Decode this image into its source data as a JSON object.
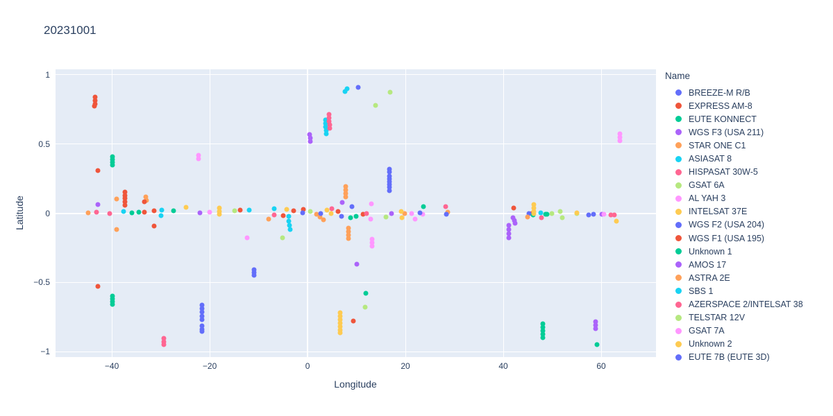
{
  "title": "20231001",
  "colors": {
    "text": "#2a3f5f",
    "plot_background": "#e5ecf6",
    "grid": "#ffffff",
    "paper_background": "#ffffff"
  },
  "chart_data": {
    "type": "scatter",
    "title": "20231001",
    "xlabel": "Longitude",
    "ylabel": "Latitude",
    "xlim": [
      -51.5,
      71.2
    ],
    "ylim": [
      -1.04,
      1.04
    ],
    "grid": true,
    "legend_position": "right",
    "legend_title": "Name",
    "x_ticks": [
      {
        "v": -40,
        "label": "−40"
      },
      {
        "v": -20,
        "label": "−20"
      },
      {
        "v": 0,
        "label": "0"
      },
      {
        "v": 20,
        "label": "20"
      },
      {
        "v": 40,
        "label": "40"
      },
      {
        "v": 60,
        "label": "60"
      }
    ],
    "y_ticks": [
      {
        "v": 1,
        "label": "1"
      },
      {
        "v": 0.5,
        "label": "0.5"
      },
      {
        "v": 0,
        "label": "0"
      },
      {
        "v": -0.5,
        "label": "−0.5"
      },
      {
        "v": -1,
        "label": "−1"
      }
    ],
    "series": [
      {
        "name": "BREEZE-M R/B",
        "color": "#636EFA",
        "points": [
          [
            16.7,
            0.32
          ],
          [
            16.7,
            0.3
          ],
          [
            16.7,
            0.27
          ],
          [
            16.7,
            0.25
          ],
          [
            16.8,
            0.23
          ],
          [
            16.8,
            0.21
          ],
          [
            16.8,
            0.19
          ],
          [
            16.8,
            0.165
          ],
          [
            10.4,
            0.91
          ],
          [
            -21.6,
            -0.665
          ],
          [
            -21.6,
            -0.69
          ],
          [
            -21.6,
            -0.715
          ],
          [
            -21.6,
            -0.745
          ],
          [
            -21.6,
            -0.77
          ],
          [
            -21.6,
            -0.815
          ],
          [
            -21.6,
            -0.84
          ],
          [
            -21.6,
            -0.855
          ],
          [
            -10.9,
            -0.41
          ],
          [
            -10.9,
            -0.43
          ],
          [
            -10.9,
            -0.45
          ]
        ]
      },
      {
        "name": "EXPRESS AM-8",
        "color": "#EF553B",
        "points": [
          [
            -13.8,
            0.025
          ],
          [
            -5.0,
            -0.02
          ],
          [
            -2.9,
            0.02
          ],
          [
            -0.9,
            0.03
          ],
          [
            6.2,
            0.015
          ],
          [
            11.3,
            -0.01
          ],
          [
            9.4,
            -0.78
          ],
          [
            42.1,
            0.04
          ],
          [
            45.8,
            -0.005
          ]
        ]
      },
      {
        "name": "EUTE KONNECT",
        "color": "#00CC96",
        "points": [
          [
            -39.9,
            0.41
          ],
          [
            -39.9,
            0.39
          ],
          [
            -39.9,
            0.37
          ],
          [
            -39.9,
            0.35
          ],
          [
            -39.9,
            -0.6
          ],
          [
            -39.9,
            -0.62
          ],
          [
            -39.9,
            -0.64
          ],
          [
            -39.9,
            -0.66
          ],
          [
            -35.9,
            0.005
          ],
          [
            -34.5,
            0.01
          ],
          [
            -27.4,
            0.02
          ]
        ]
      },
      {
        "name": "WGS F3 (USA 211)",
        "color": "#AB63FA",
        "points": [
          [
            -42.8,
            0.065
          ],
          [
            -22.0,
            0.005
          ],
          [
            0.4,
            0.57
          ],
          [
            0.5,
            0.545
          ],
          [
            0.6,
            0.52
          ],
          [
            10.1,
            -0.37
          ],
          [
            41.1,
            -0.09
          ],
          [
            41.1,
            -0.12
          ],
          [
            41.1,
            -0.15
          ],
          [
            41.1,
            -0.18
          ],
          [
            42.0,
            -0.035
          ],
          [
            42.2,
            -0.055
          ],
          [
            42.4,
            -0.075
          ],
          [
            58.8,
            -0.785
          ],
          [
            58.8,
            -0.81
          ],
          [
            58.8,
            -0.835
          ],
          [
            60.2,
            -0.01
          ]
        ]
      },
      {
        "name": "STAR ONE C1",
        "color": "#FFA15A",
        "points": [
          [
            -44.8,
            0.005
          ],
          [
            -39.0,
            0.105
          ],
          [
            -39.0,
            -0.12
          ],
          [
            -33.0,
            0.12
          ],
          [
            -32.9,
            0.095
          ],
          [
            -8.0,
            -0.045
          ],
          [
            1.9,
            -0.01
          ],
          [
            2.5,
            -0.03
          ],
          [
            3.2,
            -0.05
          ],
          [
            7.8,
            0.195
          ],
          [
            7.8,
            0.17
          ],
          [
            7.8,
            0.145
          ],
          [
            7.8,
            0.12
          ],
          [
            8.3,
            -0.11
          ],
          [
            8.3,
            -0.135
          ],
          [
            8.3,
            -0.16
          ],
          [
            8.3,
            -0.185
          ]
        ]
      },
      {
        "name": "ASIASAT 8",
        "color": "#19D3F3",
        "points": [
          [
            3.7,
            0.675
          ],
          [
            3.7,
            0.65
          ],
          [
            3.7,
            0.625
          ],
          [
            3.8,
            0.6
          ],
          [
            3.8,
            0.575
          ],
          [
            7.7,
            0.88
          ],
          [
            8.1,
            0.9
          ]
        ]
      },
      {
        "name": "HISPASAT 30W-5",
        "color": "#FF6692",
        "points": [
          [
            -43.1,
            0.01
          ],
          [
            -40.4,
            0.0
          ],
          [
            -29.4,
            -0.905
          ],
          [
            -29.4,
            -0.93
          ],
          [
            -29.4,
            -0.95
          ]
        ]
      },
      {
        "name": "GSAT 6A",
        "color": "#B6E880",
        "points": [
          [
            13.9,
            0.78
          ],
          [
            16.9,
            0.875
          ],
          [
            11.8,
            -0.68
          ],
          [
            16.0,
            -0.03
          ],
          [
            49.9,
            -0.005
          ],
          [
            51.6,
            0.015
          ],
          [
            52.1,
            -0.035
          ]
        ]
      },
      {
        "name": "AL YAH 3",
        "color": "#FF97FF",
        "points": [
          [
            -22.3,
            0.42
          ],
          [
            -22.3,
            0.395
          ],
          [
            -20.0,
            0.01
          ],
          [
            -12.3,
            -0.18
          ]
        ]
      },
      {
        "name": "INTELSAT 37E",
        "color": "#FECB52",
        "points": [
          [
            -24.8,
            0.045
          ],
          [
            -18.0,
            0.04
          ],
          [
            -18.0,
            0.015
          ],
          [
            -18.0,
            -0.01
          ],
          [
            -4.3,
            0.03
          ]
        ]
      },
      {
        "name": "WGS F2 (USA 204)",
        "color": "#636EFA",
        "points": [
          [
            45.2,
            0.0
          ],
          [
            57.4,
            -0.015
          ],
          [
            58.4,
            -0.01
          ]
        ]
      },
      {
        "name": "WGS F1 (USA 195)",
        "color": "#EF553B",
        "points": [
          [
            -43.4,
            0.84
          ],
          [
            -43.4,
            0.815
          ],
          [
            -43.4,
            0.79
          ],
          [
            -43.5,
            0.775
          ],
          [
            -42.8,
            0.31
          ],
          [
            -42.8,
            -0.53
          ],
          [
            -37.3,
            0.155
          ],
          [
            -37.3,
            0.13
          ],
          [
            -37.3,
            0.11
          ],
          [
            -37.3,
            0.085
          ],
          [
            -37.3,
            0.06
          ],
          [
            -33.3,
            0.085
          ],
          [
            -33.3,
            0.01
          ],
          [
            -31.4,
            0.02
          ],
          [
            -31.3,
            -0.095
          ]
        ]
      },
      {
        "name": "Unknown 1",
        "color": "#00CC96",
        "points": [
          [
            8.8,
            -0.035
          ],
          [
            9.9,
            -0.025
          ],
          [
            11.9,
            -0.58
          ],
          [
            23.7,
            0.05
          ],
          [
            46.1,
            -0.015
          ],
          [
            48.6,
            -0.01
          ],
          [
            49.0,
            -0.01
          ],
          [
            48.1,
            -0.8
          ],
          [
            48.1,
            -0.825
          ],
          [
            48.1,
            -0.85
          ],
          [
            48.1,
            -0.875
          ],
          [
            48.1,
            -0.9
          ],
          [
            59.1,
            -0.95
          ]
        ]
      },
      {
        "name": "AMOS 17",
        "color": "#AB63FA",
        "points": [
          [
            7.1,
            0.08
          ],
          [
            17.1,
            0.0
          ]
        ]
      },
      {
        "name": "ASTRA 2E",
        "color": "#FFA15A",
        "points": [
          [
            19.9,
            0.0
          ],
          [
            28.7,
            0.01
          ],
          [
            44.9,
            -0.03
          ]
        ]
      },
      {
        "name": "SBS 1",
        "color": "#19D3F3",
        "points": [
          [
            -37.6,
            0.015
          ],
          [
            -29.8,
            0.025
          ],
          [
            -29.9,
            -0.02
          ],
          [
            -11.9,
            0.025
          ],
          [
            -6.8,
            0.035
          ],
          [
            -3.9,
            -0.025
          ],
          [
            -3.8,
            -0.06
          ],
          [
            -3.7,
            -0.09
          ],
          [
            -3.6,
            -0.12
          ],
          [
            47.7,
            0.005
          ]
        ]
      },
      {
        "name": "AZERSPACE 2/INTELSAT 38",
        "color": "#FF6692",
        "points": [
          [
            4.4,
            0.715
          ],
          [
            4.4,
            0.69
          ],
          [
            4.4,
            0.665
          ],
          [
            4.5,
            0.64
          ],
          [
            4.5,
            0.615
          ],
          [
            5.0,
            0.035
          ],
          [
            -6.8,
            -0.015
          ],
          [
            12.1,
            0.0
          ],
          [
            28.2,
            0.05
          ],
          [
            47.8,
            -0.035
          ],
          [
            62.0,
            -0.015
          ],
          [
            62.7,
            -0.015
          ]
        ]
      },
      {
        "name": "TELSTAR 12V",
        "color": "#B6E880",
        "points": [
          [
            -14.9,
            0.02
          ],
          [
            -5.1,
            -0.18
          ],
          [
            0.6,
            0.015
          ],
          [
            55.0,
            -0.005
          ]
        ]
      },
      {
        "name": "GSAT 7A",
        "color": "#FF97FF",
        "points": [
          [
            13.0,
            0.07
          ],
          [
            12.9,
            -0.045
          ],
          [
            13.2,
            -0.19
          ],
          [
            13.2,
            -0.215
          ],
          [
            13.2,
            -0.24
          ],
          [
            21.3,
            -0.005
          ],
          [
            22.0,
            -0.045
          ],
          [
            23.5,
            -0.01
          ],
          [
            60.6,
            -0.01
          ],
          [
            63.8,
            0.575
          ],
          [
            63.8,
            0.55
          ],
          [
            63.8,
            0.525
          ]
        ]
      },
      {
        "name": "Unknown 2",
        "color": "#FECB52",
        "points": [
          [
            3.9,
            0.025
          ],
          [
            4.8,
            -0.005
          ],
          [
            6.7,
            -0.72
          ],
          [
            6.7,
            -0.745
          ],
          [
            6.7,
            -0.77
          ],
          [
            6.7,
            -0.795
          ],
          [
            6.7,
            -0.82
          ],
          [
            6.7,
            -0.845
          ],
          [
            6.7,
            -0.865
          ],
          [
            19.2,
            0.015
          ],
          [
            19.3,
            -0.035
          ],
          [
            46.2,
            0.065
          ],
          [
            46.2,
            0.04
          ],
          [
            46.2,
            0.015
          ],
          [
            46.2,
            -0.005
          ],
          [
            55.0,
            0.005
          ],
          [
            63.1,
            -0.06
          ]
        ]
      },
      {
        "name": "EUTE 7B (EUTE 3D)",
        "color": "#636EFA",
        "points": [
          [
            -1.0,
            0.005
          ],
          [
            2.7,
            0.0
          ],
          [
            6.9,
            -0.025
          ],
          [
            9.1,
            0.05
          ],
          [
            23.0,
            0.005
          ],
          [
            28.3,
            -0.01
          ]
        ]
      }
    ]
  }
}
